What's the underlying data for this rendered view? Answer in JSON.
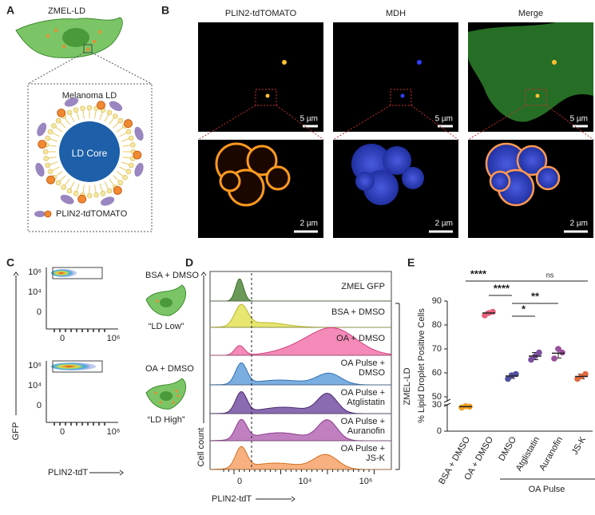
{
  "figure": {
    "panel_a": {
      "label": "A",
      "cell": "ZMEL-LD",
      "inset_title": "Melanoma LD",
      "core": "LD Core",
      "legend": "PLIN2-tdTOMATO"
    },
    "panel_b": {
      "label": "B",
      "channels": [
        "PLIN2-tdTOMATO",
        "MDH",
        "Merge"
      ],
      "scale_bars_top": [
        "5 µm",
        "5 µm",
        "5 µm"
      ],
      "scale_bars_bottom": [
        "2 µm",
        "2 µm",
        "2 µm"
      ]
    },
    "panel_c": {
      "label": "C",
      "y_label": "GFP",
      "x_label": "PLIN2-tdT",
      "y_ticks": [
        "10⁶",
        "10⁴",
        "0"
      ],
      "x_ticks": [
        "0",
        "10⁶"
      ],
      "samples": [
        {
          "condition": "BSA + DMSO",
          "phenotype": "“LD Low”"
        },
        {
          "condition": "OA + DMSO",
          "phenotype": "“LD High”"
        }
      ]
    },
    "panel_d": {
      "label": "D",
      "y_label": "Cell count",
      "x_label": "PLIN2-tdT",
      "x_ticks": [
        "0",
        "10⁴",
        "10⁶"
      ],
      "group": "ZMEL-LD",
      "rows": [
        [
          "ZMEL GFP"
        ],
        [
          "BSA + DMSO"
        ],
        [
          "OA + DMSO"
        ],
        [
          "OA Pulse +",
          "DMSO"
        ],
        [
          "OA Pulse +",
          "Atglistatin"
        ],
        [
          "OA Pulse +",
          "Auranofin"
        ],
        [
          "OA Pulse +",
          "JS-K"
        ]
      ]
    },
    "panel_e_label": "E"
  },
  "chart_data": {
    "type": "dot_plot",
    "y_label": "% Lipid Droplet Positive Cells",
    "categories": [
      "BSA + DMSO",
      "OA + DMSO",
      "DMSO",
      "Atglistatin",
      "Auranofin",
      "JS-K"
    ],
    "colors": [
      "#f0a020",
      "#e8607a",
      "#4f4fa0",
      "#7a4fa0",
      "#9a4f9a",
      "#e06a40"
    ],
    "points": [
      [
        27,
        28.5,
        28
      ],
      [
        84,
        85,
        85.5
      ],
      [
        57.5,
        59,
        59.5
      ],
      [
        65.5,
        67,
        68.5
      ],
      [
        66,
        70,
        68.5
      ],
      [
        57.5,
        58.5,
        59.5
      ]
    ],
    "means": [
      28,
      85,
      58.7,
      67,
      68.2,
      58.5
    ],
    "errors": [
      1,
      0.5,
      1,
      1.5,
      2,
      1
    ],
    "ylim": [
      0,
      90
    ],
    "y_break": [
      31,
      48
    ],
    "yticks": [
      0,
      30,
      50,
      60,
      70,
      80,
      90
    ],
    "significance": [
      {
        "from": 0,
        "to": 2,
        "label": "****"
      },
      {
        "from": 1,
        "to": 2,
        "label": "****"
      },
      {
        "from": 2,
        "to": 3,
        "label": "*"
      },
      {
        "from": 2,
        "to": 4,
        "label": "**"
      },
      {
        "from": 2,
        "to": 5,
        "label": "ns"
      }
    ],
    "group": {
      "label": "OA Pulse",
      "from": 2,
      "to": 5
    }
  }
}
